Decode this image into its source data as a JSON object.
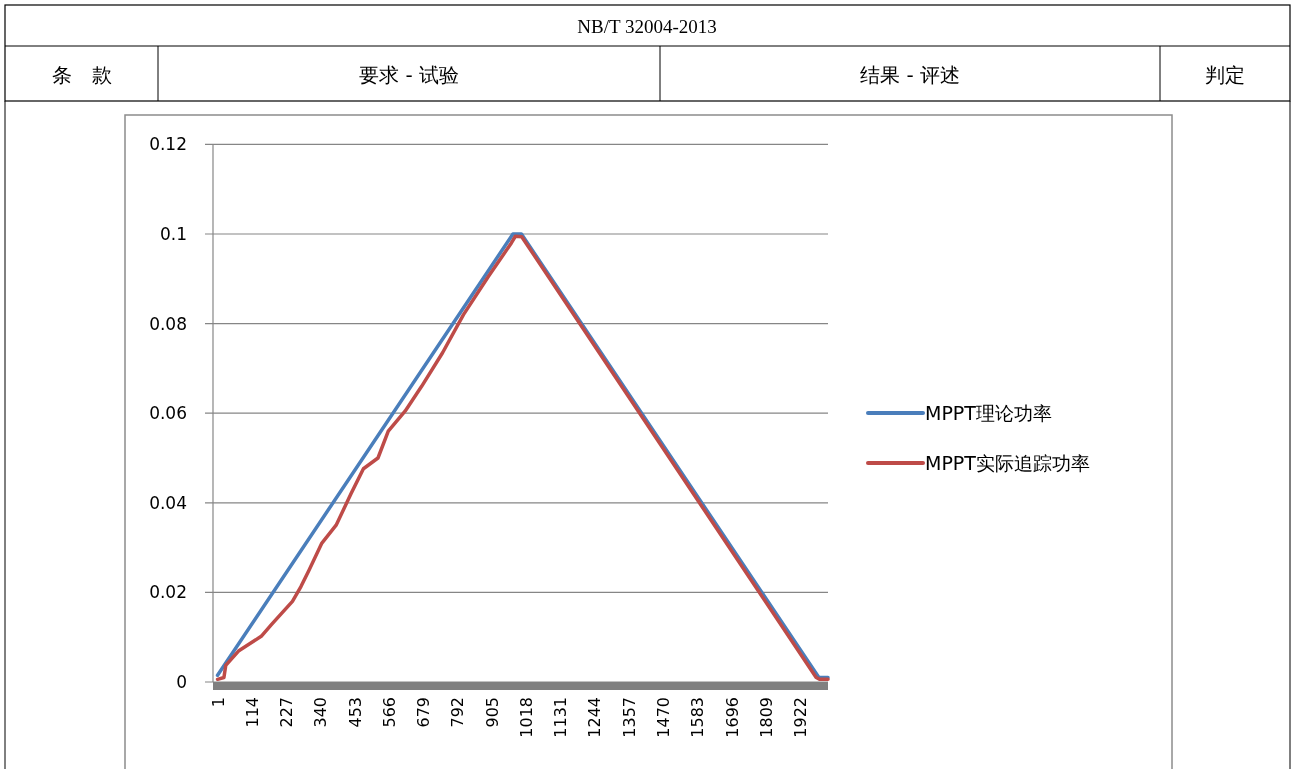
{
  "chart_data": {
    "type": "line",
    "annotations": [
      "NB/T 32004-2013",
      "条　款",
      "要求 - 试验",
      "结果 - 评述",
      "判定"
    ],
    "xlim": [
      -14,
      2014
    ],
    "xticks": [
      1,
      114,
      227,
      340,
      453,
      566,
      679,
      792,
      905,
      1018,
      1131,
      1244,
      1357,
      1470,
      1583,
      1696,
      1809,
      1922
    ],
    "ylim": [
      0,
      0.12
    ],
    "yticks": [
      0,
      0.02,
      0.04,
      0.06,
      0.08,
      0.1,
      0.12
    ],
    "grid": "y",
    "legend": "right",
    "series": [
      {
        "name": "MPPT理论功率",
        "color": "#4a7ebb",
        "x": [
          1,
          975,
          1003,
          1984,
          2014
        ],
        "values": [
          0.0015,
          0.1,
          0.1,
          0.001,
          0.001
        ]
      },
      {
        "name": "MPPT实际追踪功率",
        "color": "#be4b48",
        "x": [
          1,
          22,
          28,
          70,
          145,
          180,
          248,
          276,
          303,
          345,
          392,
          441,
          482,
          530,
          564,
          620,
          674,
          743,
          812,
          894,
          970,
          983,
          1004,
          1975,
          1987,
          2014
        ],
        "values": [
          0.0006,
          0.001,
          0.0037,
          0.0069,
          0.0102,
          0.0129,
          0.018,
          0.0213,
          0.025,
          0.031,
          0.035,
          0.042,
          0.0476,
          0.05,
          0.056,
          0.0605,
          0.066,
          0.0735,
          0.082,
          0.0905,
          0.098,
          0.0995,
          0.0994,
          0.001,
          0.0006,
          0.0006
        ]
      }
    ]
  }
}
